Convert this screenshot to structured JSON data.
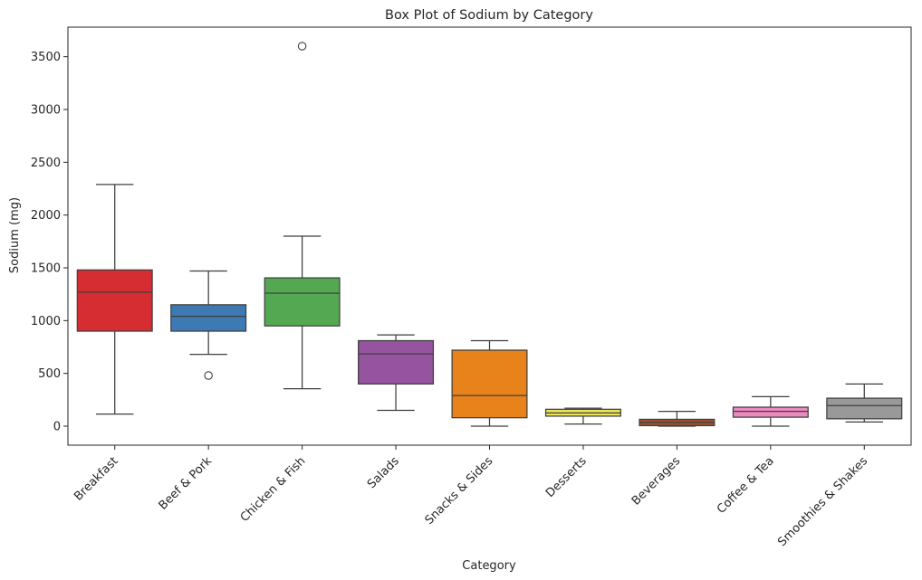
{
  "chart_data": {
    "type": "box",
    "title": "Box Plot of Sodium by Category",
    "xlabel": "Category",
    "ylabel": "Sodium (mg)",
    "ylim": [
      -180,
      3780
    ],
    "yticks": [
      0,
      500,
      1000,
      1500,
      2000,
      2500,
      3000,
      3500
    ],
    "grid": false,
    "categories": [
      "Breakfast",
      "Beef & Pork",
      "Chicken & Fish",
      "Salads",
      "Snacks & Sides",
      "Desserts",
      "Beverages",
      "Coffee & Tea",
      "Smoothies & Shakes"
    ],
    "boxes": [
      {
        "category": "Breakfast",
        "whisker_low": 115,
        "q1": 900,
        "median": 1270,
        "q3": 1480,
        "whisker_high": 2290,
        "outliers": [],
        "color": "#d62d33"
      },
      {
        "category": "Beef & Pork",
        "whisker_low": 680,
        "q1": 900,
        "median": 1040,
        "q3": 1150,
        "whisker_high": 1470,
        "outliers": [
          480
        ],
        "color": "#3d7ab3"
      },
      {
        "category": "Chicken & Fish",
        "whisker_low": 355,
        "q1": 950,
        "median": 1260,
        "q3": 1405,
        "whisker_high": 1800,
        "outliers": [
          3600
        ],
        "color": "#55a852"
      },
      {
        "category": "Salads",
        "whisker_low": 150,
        "q1": 400,
        "median": 685,
        "q3": 810,
        "whisker_high": 865,
        "outliers": [],
        "color": "#9553a0"
      },
      {
        "category": "Snacks & Sides",
        "whisker_low": 0,
        "q1": 80,
        "median": 290,
        "q3": 720,
        "whisker_high": 810,
        "outliers": [],
        "color": "#e8821b"
      },
      {
        "category": "Desserts",
        "whisker_low": 20,
        "q1": 95,
        "median": 125,
        "q3": 160,
        "whisker_high": 170,
        "outliers": [],
        "color": "#ebe55a"
      },
      {
        "category": "Beverages",
        "whisker_low": 0,
        "q1": 5,
        "median": 35,
        "q3": 65,
        "whisker_high": 140,
        "outliers": [],
        "color": "#9a5230"
      },
      {
        "category": "Coffee & Tea",
        "whisker_low": 0,
        "q1": 85,
        "median": 140,
        "q3": 180,
        "whisker_high": 280,
        "outliers": [],
        "color": "#ec8ac0"
      },
      {
        "category": "Smoothies & Shakes",
        "whisker_low": 40,
        "q1": 70,
        "median": 195,
        "q3": 265,
        "whisker_high": 400,
        "outliers": [],
        "color": "#999999"
      }
    ]
  }
}
